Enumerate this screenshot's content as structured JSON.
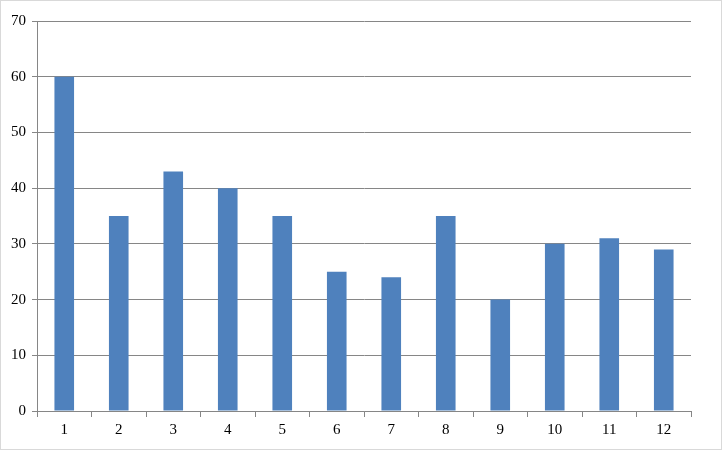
{
  "chart_data": {
    "type": "bar",
    "categories": [
      "1",
      "2",
      "3",
      "4",
      "5",
      "6",
      "7",
      "8",
      "9",
      "10",
      "11",
      "12"
    ],
    "values": [
      60,
      35,
      43,
      40,
      35,
      25,
      24,
      35,
      20,
      30,
      31,
      29
    ],
    "color": "#4f81bd",
    "ylim": [
      0,
      70
    ],
    "yticks": [
      0,
      10,
      20,
      30,
      40,
      50,
      60,
      70
    ],
    "grid": true
  }
}
